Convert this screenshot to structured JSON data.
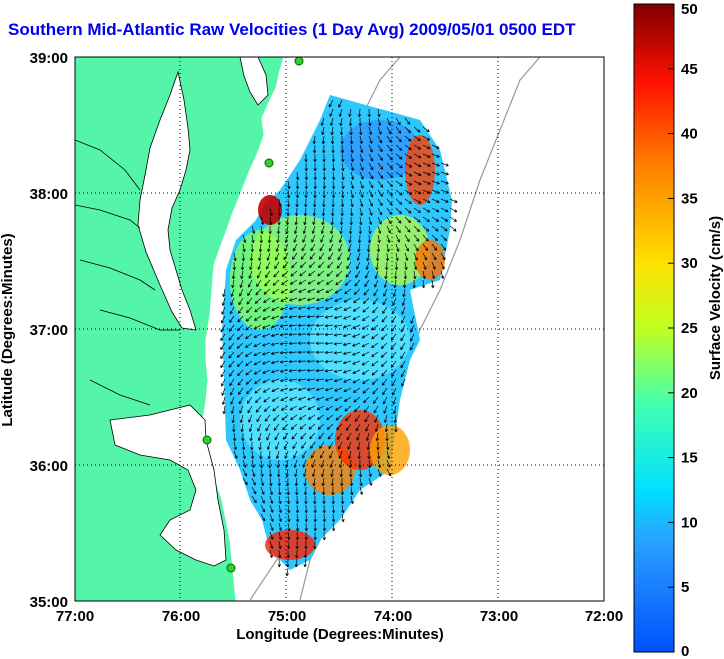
{
  "title": "Southern Mid-Atlantic Raw Velocities (1 Day Avg) 2009/05/01 0500 EDT",
  "xlabel": "Longitude (Degrees:Minutes)",
  "ylabel": "Latitude (Degrees:Minutes)",
  "x_ticks": [
    "77:00",
    "76:00",
    "75:00",
    "74:00",
    "73:00",
    "72:00"
  ],
  "y_ticks": [
    "39:00",
    "38:00",
    "37:00",
    "36:00",
    "35:00"
  ],
  "colorbar": {
    "label": "Surface Velocity (cm/s)",
    "ticks": [
      "50",
      "45",
      "40",
      "35",
      "30",
      "25",
      "20",
      "15",
      "10",
      "5",
      "0"
    ],
    "range": [
      0,
      50
    ]
  },
  "colors": {
    "land": "#55f5a9",
    "water": "#ffffff",
    "title": "#0000ee",
    "site_marker": "#33cc33",
    "bathymetry": "#999999"
  },
  "chart_data": {
    "type": "heatmap",
    "xlim": [
      "77:00 W",
      "72:00 W"
    ],
    "ylim": [
      "35:00 N",
      "39:00 N"
    ],
    "value_units": "cm/s",
    "value_range": [
      0,
      50
    ],
    "grid": true,
    "legend": "colorbar-right"
  }
}
